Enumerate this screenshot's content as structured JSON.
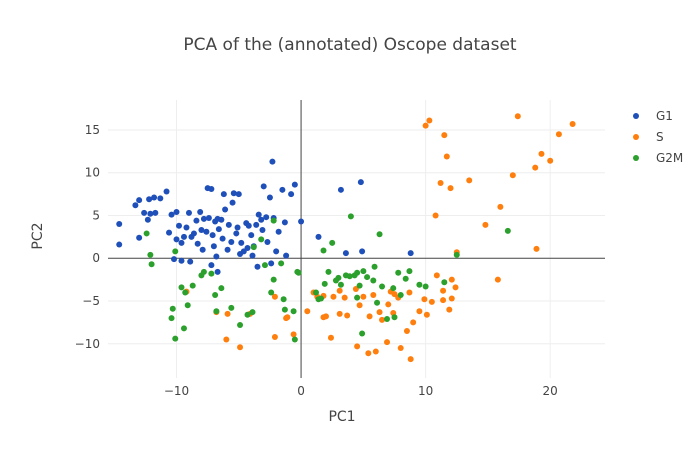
{
  "chart_data": {
    "type": "scatter",
    "title": "PCA of the (annotated) Oscope dataset",
    "xlabel": "PC1",
    "ylabel": "PC2",
    "xlim": [
      -15.5,
      24.4
    ],
    "ylim": [
      -14.0,
      18.5
    ],
    "x_ticks": [
      -10,
      0,
      10,
      20
    ],
    "x_tick_labels": [
      "−10",
      "0",
      "10",
      "20"
    ],
    "y_ticks": [
      -10,
      -5,
      0,
      5,
      10,
      15
    ],
    "y_tick_labels": [
      "−10",
      "−5",
      "0",
      "5",
      "10",
      "15"
    ],
    "grid": true,
    "zero_lines": true,
    "legend_position": "top-right",
    "series": [
      {
        "name": "G1",
        "color": "#1f4fb8",
        "points": [
          [
            -14.6,
            4.0
          ],
          [
            -14.6,
            1.6
          ],
          [
            -13.3,
            6.2
          ],
          [
            -13.0,
            6.8
          ],
          [
            -13.0,
            2.4
          ],
          [
            -12.6,
            5.3
          ],
          [
            -12.3,
            4.5
          ],
          [
            -12.2,
            6.9
          ],
          [
            -12.1,
            5.2
          ],
          [
            -11.8,
            7.1
          ],
          [
            -11.3,
            7.0
          ],
          [
            -10.8,
            7.8
          ],
          [
            -10.6,
            3.0
          ],
          [
            -10.4,
            5.1
          ],
          [
            -10.0,
            2.2
          ],
          [
            -10.0,
            5.4
          ],
          [
            -9.8,
            3.8
          ],
          [
            -9.6,
            1.8
          ],
          [
            -9.4,
            2.5
          ],
          [
            -9.2,
            3.6
          ],
          [
            -9.0,
            5.3
          ],
          [
            -8.8,
            2.5
          ],
          [
            -8.6,
            2.9
          ],
          [
            -8.4,
            4.4
          ],
          [
            -8.3,
            1.7
          ],
          [
            -8.1,
            5.4
          ],
          [
            -7.9,
            1.0
          ],
          [
            -7.8,
            4.6
          ],
          [
            -7.6,
            3.1
          ],
          [
            -7.5,
            8.2
          ],
          [
            -7.4,
            4.7
          ],
          [
            -7.2,
            8.1
          ],
          [
            -7.1,
            2.7
          ],
          [
            -7.0,
            1.4
          ],
          [
            -6.9,
            4.3
          ],
          [
            -6.8,
            0.2
          ],
          [
            -6.7,
            4.6
          ],
          [
            -6.6,
            3.4
          ],
          [
            -6.4,
            4.5
          ],
          [
            -6.3,
            2.3
          ],
          [
            -6.2,
            7.5
          ],
          [
            -6.1,
            5.7
          ],
          [
            -5.9,
            1.0
          ],
          [
            -5.8,
            3.9
          ],
          [
            -5.6,
            1.9
          ],
          [
            -5.5,
            6.5
          ],
          [
            -5.4,
            7.6
          ],
          [
            -5.2,
            2.9
          ],
          [
            -5.1,
            3.6
          ],
          [
            -5.0,
            7.5
          ],
          [
            -4.9,
            0.5
          ],
          [
            -4.8,
            1.8
          ],
          [
            -4.6,
            0.8
          ],
          [
            -4.4,
            4.1
          ],
          [
            -4.3,
            1.2
          ],
          [
            -4.2,
            3.8
          ],
          [
            -4.0,
            2.7
          ],
          [
            -3.9,
            0.3
          ],
          [
            -3.8,
            1.4
          ],
          [
            -3.6,
            3.9
          ],
          [
            -3.4,
            5.1
          ],
          [
            -3.2,
            4.5
          ],
          [
            -3.1,
            3.3
          ],
          [
            -3.0,
            8.4
          ],
          [
            -2.8,
            4.8
          ],
          [
            -2.7,
            1.9
          ],
          [
            -2.5,
            7.1
          ],
          [
            -2.3,
            11.3
          ],
          [
            -2.2,
            4.7
          ],
          [
            -2.0,
            0.8
          ],
          [
            -1.8,
            3.1
          ],
          [
            -1.5,
            8.0
          ],
          [
            -1.3,
            4.2
          ],
          [
            -0.8,
            7.5
          ],
          [
            -0.5,
            8.6
          ],
          [
            0.0,
            4.3
          ],
          [
            1.4,
            2.5
          ],
          [
            3.2,
            8.0
          ],
          [
            3.6,
            0.6
          ],
          [
            4.8,
            8.9
          ],
          [
            4.9,
            0.8
          ],
          [
            8.8,
            0.6
          ],
          [
            -9.6,
            -0.3
          ],
          [
            -8.9,
            -0.4
          ],
          [
            -10.2,
            -0.1
          ],
          [
            -7.2,
            -0.8
          ],
          [
            -6.7,
            -1.6
          ],
          [
            -3.5,
            -1.0
          ],
          [
            -2.4,
            -0.6
          ],
          [
            -1.2,
            0.3
          ],
          [
            -11.7,
            5.3
          ],
          [
            -8.0,
            3.3
          ]
        ]
      },
      {
        "name": "S",
        "color": "#ff7f0e",
        "points": [
          [
            10.0,
            15.5
          ],
          [
            10.3,
            16.1
          ],
          [
            11.5,
            14.4
          ],
          [
            11.7,
            11.9
          ],
          [
            11.2,
            8.8
          ],
          [
            12.0,
            8.2
          ],
          [
            13.5,
            9.1
          ],
          [
            10.8,
            5.0
          ],
          [
            12.5,
            0.7
          ],
          [
            17.4,
            16.6
          ],
          [
            20.7,
            14.5
          ],
          [
            21.8,
            15.7
          ],
          [
            19.3,
            12.2
          ],
          [
            20.0,
            11.4
          ],
          [
            18.8,
            10.6
          ],
          [
            17.0,
            9.7
          ],
          [
            16.0,
            6.0
          ],
          [
            14.8,
            3.9
          ],
          [
            15.8,
            -2.5
          ],
          [
            18.9,
            1.1
          ],
          [
            -6.8,
            -6.3
          ],
          [
            -6.0,
            -9.5
          ],
          [
            -4.9,
            -10.4
          ],
          [
            -4.1,
            -6.5
          ],
          [
            -2.1,
            -9.2
          ],
          [
            -1.1,
            -6.9
          ],
          [
            -0.6,
            -8.9
          ],
          [
            0.5,
            -6.2
          ],
          [
            1.0,
            -4.0
          ],
          [
            1.3,
            -4.5
          ],
          [
            1.8,
            -6.9
          ],
          [
            2.0,
            -6.8
          ],
          [
            2.4,
            -9.3
          ],
          [
            2.6,
            -4.5
          ],
          [
            3.1,
            -6.5
          ],
          [
            3.5,
            -4.6
          ],
          [
            3.7,
            -6.7
          ],
          [
            4.4,
            -3.6
          ],
          [
            4.5,
            -10.3
          ],
          [
            4.7,
            -5.5
          ],
          [
            5.0,
            -4.5
          ],
          [
            5.4,
            -11.1
          ],
          [
            5.5,
            -6.8
          ],
          [
            5.8,
            -4.3
          ],
          [
            6.0,
            -10.9
          ],
          [
            6.3,
            -6.3
          ],
          [
            6.5,
            -7.2
          ],
          [
            6.9,
            -9.8
          ],
          [
            7.0,
            -5.4
          ],
          [
            7.2,
            -3.9
          ],
          [
            7.5,
            -4.2
          ],
          [
            7.8,
            -4.6
          ],
          [
            8.0,
            -10.5
          ],
          [
            8.5,
            -8.5
          ],
          [
            8.8,
            -11.8
          ],
          [
            9.0,
            -7.5
          ],
          [
            9.5,
            -6.2
          ],
          [
            9.9,
            -4.8
          ],
          [
            10.1,
            -6.6
          ],
          [
            10.5,
            -5.1
          ],
          [
            10.9,
            -2.0
          ],
          [
            11.4,
            -4.9
          ],
          [
            11.9,
            -6.0
          ],
          [
            12.1,
            -4.7
          ],
          [
            12.4,
            -3.4
          ],
          [
            12.1,
            -2.5
          ],
          [
            11.4,
            -3.8
          ],
          [
            8.7,
            -4.0
          ],
          [
            7.4,
            -6.4
          ],
          [
            3.1,
            -3.8
          ],
          [
            1.8,
            -4.4
          ],
          [
            -2.1,
            -4.5
          ],
          [
            -1.2,
            -7.0
          ],
          [
            -9.2,
            -3.9
          ],
          [
            -5.9,
            -6.5
          ]
        ]
      },
      {
        "name": "G2M",
        "color": "#2ca02c",
        "points": [
          [
            -12.4,
            2.9
          ],
          [
            -12.1,
            0.4
          ],
          [
            -12.0,
            -0.7
          ],
          [
            -10.1,
            0.8
          ],
          [
            -9.3,
            -4.0
          ],
          [
            -9.1,
            -5.5
          ],
          [
            -10.3,
            -5.9
          ],
          [
            -10.4,
            -7.0
          ],
          [
            -10.1,
            -9.4
          ],
          [
            -9.4,
            -8.2
          ],
          [
            -9.6,
            -3.4
          ],
          [
            -8.7,
            -3.2
          ],
          [
            -8.0,
            -2.0
          ],
          [
            -7.8,
            -1.6
          ],
          [
            -7.2,
            -1.8
          ],
          [
            -6.9,
            -4.3
          ],
          [
            -6.8,
            -6.2
          ],
          [
            -6.4,
            -3.5
          ],
          [
            -5.6,
            -5.8
          ],
          [
            -4.9,
            -7.8
          ],
          [
            -4.3,
            -6.6
          ],
          [
            -3.9,
            -6.3
          ],
          [
            -3.2,
            2.2
          ],
          [
            -2.9,
            -0.8
          ],
          [
            -2.4,
            -4.0
          ],
          [
            -2.2,
            -2.5
          ],
          [
            -2.2,
            4.4
          ],
          [
            -1.6,
            -0.6
          ],
          [
            -1.4,
            -4.8
          ],
          [
            -1.3,
            -6.0
          ],
          [
            -0.6,
            -6.2
          ],
          [
            -0.5,
            -9.5
          ],
          [
            -0.3,
            -1.6
          ],
          [
            -0.2,
            -1.7
          ],
          [
            1.2,
            -4.0
          ],
          [
            1.4,
            -4.8
          ],
          [
            1.6,
            -4.7
          ],
          [
            1.9,
            -3.0
          ],
          [
            2.2,
            -1.6
          ],
          [
            2.5,
            1.8
          ],
          [
            3.0,
            -2.3
          ],
          [
            3.6,
            -2.0
          ],
          [
            3.9,
            -2.1
          ],
          [
            4.0,
            4.9
          ],
          [
            4.3,
            -2.0
          ],
          [
            4.5,
            -4.6
          ],
          [
            4.7,
            -3.2
          ],
          [
            4.9,
            -8.8
          ],
          [
            5.0,
            -1.5
          ],
          [
            5.3,
            -2.2
          ],
          [
            5.8,
            -2.6
          ],
          [
            6.3,
            2.8
          ],
          [
            6.5,
            -3.3
          ],
          [
            6.9,
            -7.1
          ],
          [
            7.4,
            -3.5
          ],
          [
            7.8,
            -1.7
          ],
          [
            8.0,
            -4.3
          ],
          [
            8.4,
            -2.4
          ],
          [
            8.7,
            -1.5
          ],
          [
            9.5,
            -3.1
          ],
          [
            10.0,
            -3.3
          ],
          [
            11.5,
            -2.8
          ],
          [
            12.5,
            0.4
          ],
          [
            16.6,
            3.2
          ],
          [
            4.5,
            -1.7
          ],
          [
            3.2,
            -3.1
          ],
          [
            6.1,
            -5.2
          ],
          [
            7.5,
            -6.9
          ],
          [
            1.8,
            0.9
          ],
          [
            -3.8,
            1.3
          ],
          [
            5.9,
            -1.0
          ],
          [
            2.8,
            -2.6
          ]
        ]
      }
    ]
  }
}
